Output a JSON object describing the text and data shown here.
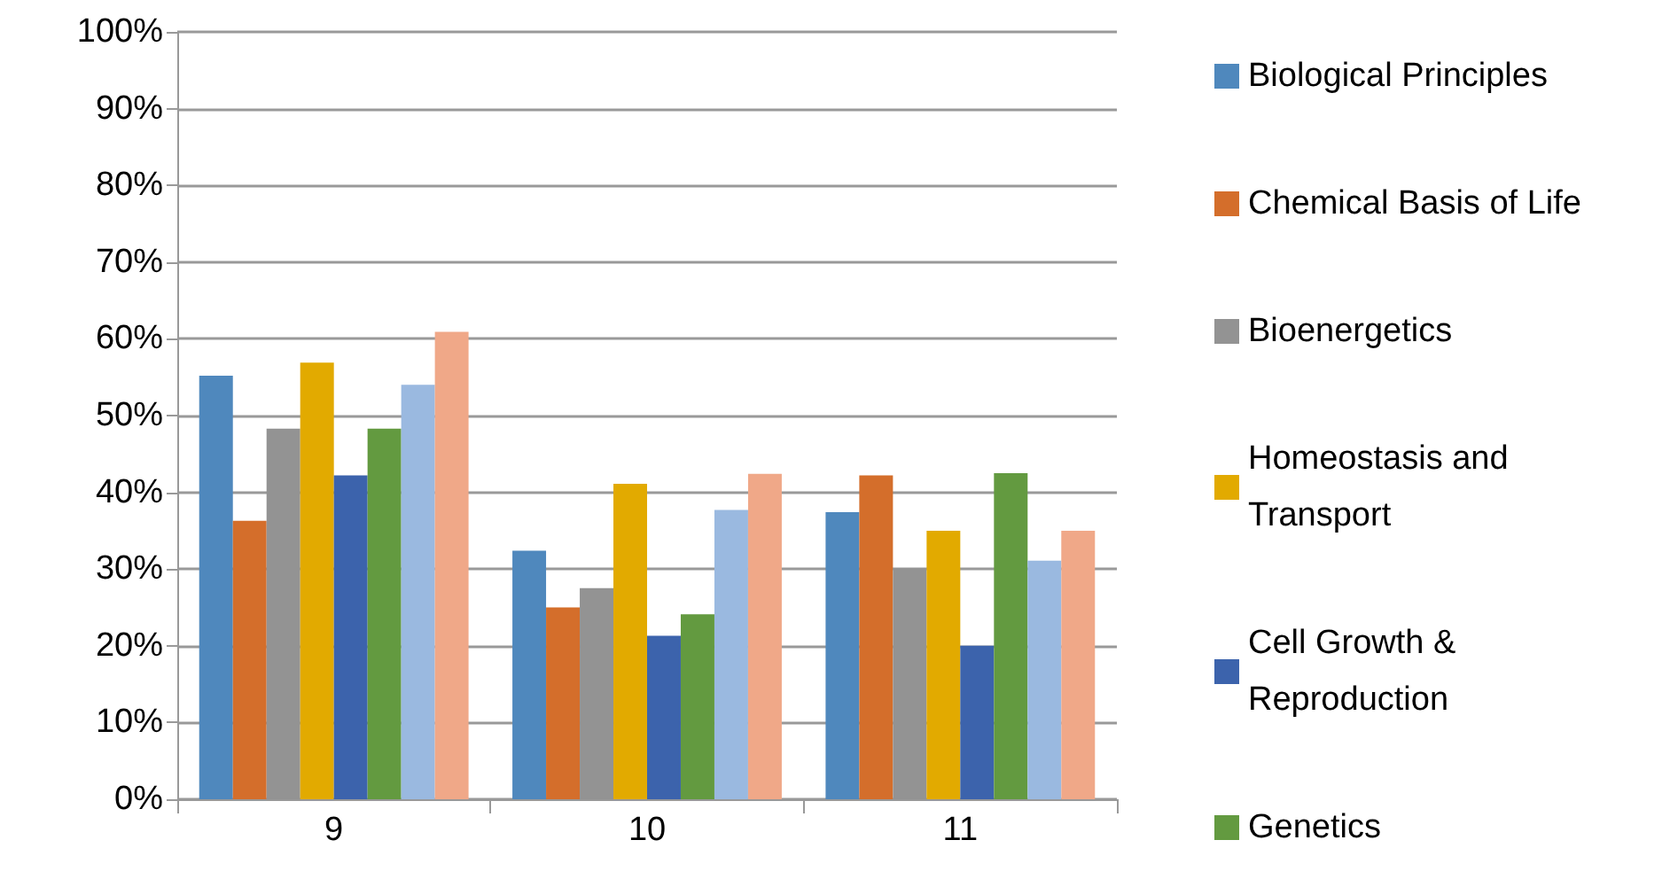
{
  "chart_data": {
    "type": "bar",
    "categories": [
      "9",
      "10",
      "11"
    ],
    "series": [
      {
        "name": "Biological Principles",
        "color": "#4f88bd",
        "values": [
          55.2,
          32.4,
          37.4
        ]
      },
      {
        "name": "Chemical Basis of Life",
        "color": "#d46e2b",
        "values": [
          36.3,
          25.0,
          42.2
        ]
      },
      {
        "name": "Bioenergetics",
        "color": "#939393",
        "values": [
          48.3,
          27.5,
          30.1
        ]
      },
      {
        "name": "Homeostasis and Transport",
        "color": "#e2aa00",
        "values": [
          56.9,
          41.1,
          35.0
        ]
      },
      {
        "name": "Cell Growth & Reproduction",
        "color": "#3c63ac",
        "values": [
          42.2,
          21.3,
          20.0
        ]
      },
      {
        "name": "Genetics",
        "color": "#639a40",
        "values": [
          48.3,
          24.1,
          42.5
        ]
      },
      {
        "color": "#9ab9e0",
        "values": [
          54.0,
          37.7,
          31.1
        ]
      },
      {
        "color": "#f0a888",
        "values": [
          60.9,
          42.4,
          35.0
        ]
      }
    ],
    "ylim": [
      0,
      100
    ],
    "yticks": [
      {
        "value": 0,
        "label": "0%"
      },
      {
        "value": 10,
        "label": "10%"
      },
      {
        "value": 20,
        "label": "20%"
      },
      {
        "value": 30,
        "label": "30%"
      },
      {
        "value": 40,
        "label": "40%"
      },
      {
        "value": 50,
        "label": "50%"
      },
      {
        "value": 60,
        "label": "60%"
      },
      {
        "value": 70,
        "label": "70%"
      },
      {
        "value": 80,
        "label": "80%"
      },
      {
        "value": 90,
        "label": "90%"
      },
      {
        "value": 100,
        "label": "100%"
      }
    ],
    "grid": "y",
    "legend": "right"
  }
}
